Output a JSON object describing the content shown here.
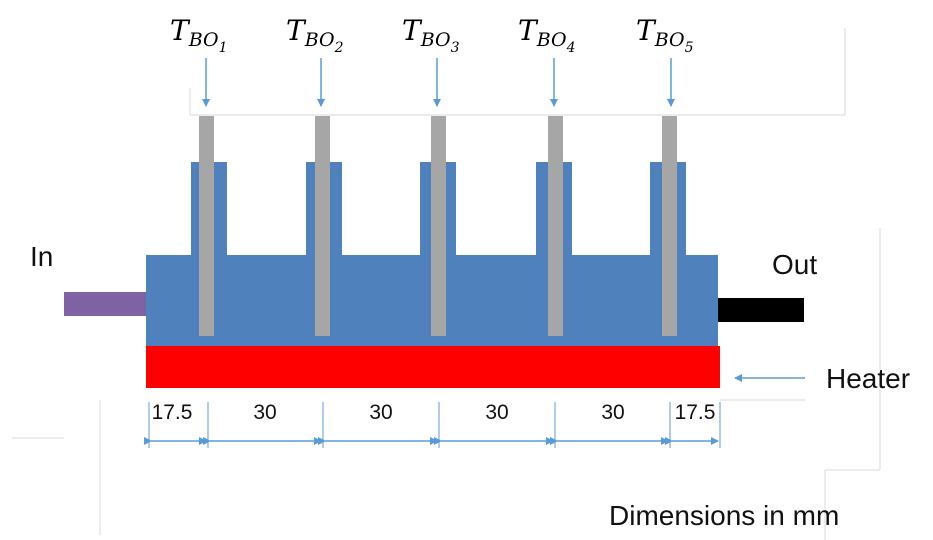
{
  "inlet_label": "In",
  "outlet_label": "Out",
  "heater_label": "Heater",
  "dimensions_note": "Dimensions in mm",
  "sensors": [
    {
      "main": "T",
      "sub": "BO",
      "index": "1"
    },
    {
      "main": "T",
      "sub": "BO",
      "index": "2"
    },
    {
      "main": "T",
      "sub": "BO",
      "index": "3"
    },
    {
      "main": "T",
      "sub": "BO",
      "index": "4"
    },
    {
      "main": "T",
      "sub": "BO",
      "index": "5"
    }
  ],
  "spacings": [
    "17.5",
    "30",
    "30",
    "30",
    "30",
    "17.5"
  ],
  "colors": {
    "body": "#4f81bd",
    "heater": "#ff0000",
    "probe": "#a6a6a6",
    "inlet_pipe": "#7f62a4",
    "outlet_pipe": "#000000",
    "arrow": "#5b9bd5"
  }
}
